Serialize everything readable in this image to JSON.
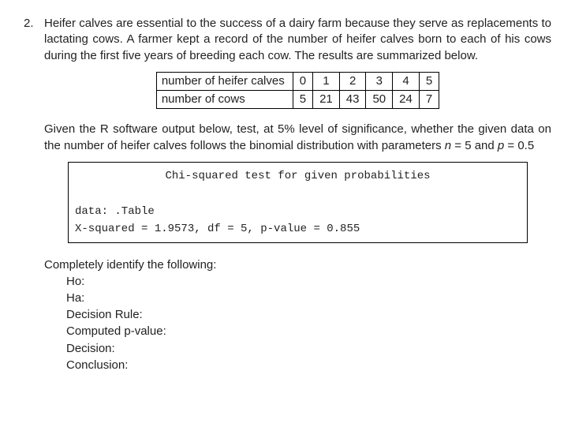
{
  "question_number": "2.",
  "intro": "Heifer calves are essential to the success of a dairy farm because they serve as replacements to lactating cows. A farmer kept a record of the number of heifer calves born to each of his cows during the first five years of breeding each cow. The results are summarized below.",
  "table": {
    "row1_label": "number of heifer calves",
    "row1_vals": [
      "0",
      "1",
      "2",
      "3",
      "4",
      "5"
    ],
    "row2_label": "number of cows",
    "row2_vals": [
      "5",
      "21",
      "43",
      "50",
      "24",
      "7"
    ]
  },
  "prompt_a": "Given the R software output below, test, at 5% level of significance, whether the given data on the number of heifer calves follows the binomial distribution with parameters ",
  "prompt_n": "n",
  "prompt_eq1": " = 5 and ",
  "prompt_p": "p",
  "prompt_eq2": " = 0.5",
  "code": {
    "title": "Chi-squared test for given probabilities",
    "line1": "data:  .Table",
    "line2": "X-squared = 1.9573, df = 5, p-value = 0.855"
  },
  "answers_heading": "Completely identify the following:",
  "answers": {
    "ho": "Ho:",
    "ha": "Ha:",
    "rule": "Decision Rule:",
    "pval": "Computed p-value:",
    "decision": "Decision:",
    "conclusion": "Conclusion:"
  }
}
